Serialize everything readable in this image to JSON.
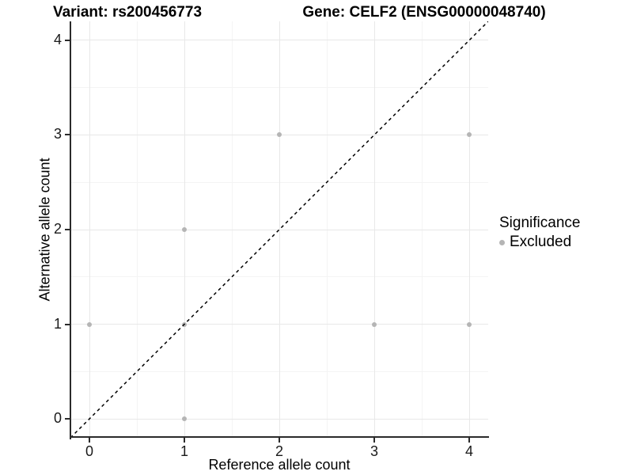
{
  "chart_data": {
    "type": "scatter",
    "titles": {
      "left": "Variant: rs200456773",
      "right": "Gene: CELF2 (ENSG00000048740)"
    },
    "xlabel": "Reference allele count",
    "ylabel": "Alternative allele count",
    "xlim": [
      -0.2,
      4.2
    ],
    "ylim": [
      -0.2,
      4.2
    ],
    "x_ticks": [
      0,
      1,
      2,
      3,
      4
    ],
    "y_ticks": [
      0,
      1,
      2,
      3,
      4
    ],
    "x_minor": [
      0.5,
      1.5,
      2.5,
      3.5
    ],
    "y_minor": [
      0.5,
      1.5,
      2.5,
      3.5
    ],
    "grid": "major and minor gridlines on white background",
    "series": [
      {
        "name": "Excluded",
        "color": "#b5b5b5",
        "points": [
          {
            "x": 0,
            "y": 1
          },
          {
            "x": 1,
            "y": 0
          },
          {
            "x": 1,
            "y": 1
          },
          {
            "x": 1,
            "y": 2
          },
          {
            "x": 2,
            "y": 3
          },
          {
            "x": 3,
            "y": 1
          },
          {
            "x": 4,
            "y": 1
          },
          {
            "x": 4,
            "y": 3
          }
        ]
      }
    ],
    "identity_line": {
      "style": "dashed",
      "color": "#000000",
      "equation": "y = x"
    },
    "legend": {
      "position": "right",
      "title": "Significance",
      "items": [
        {
          "label": "Excluded",
          "color": "#b5b5b5"
        }
      ]
    },
    "colors": {
      "point": "#b5b5b5",
      "grid_major": "#e8e8e8",
      "grid_minor": "#f4f4f4",
      "axis_line": "#2b2b2b",
      "tick": "#2b2b2b"
    }
  }
}
